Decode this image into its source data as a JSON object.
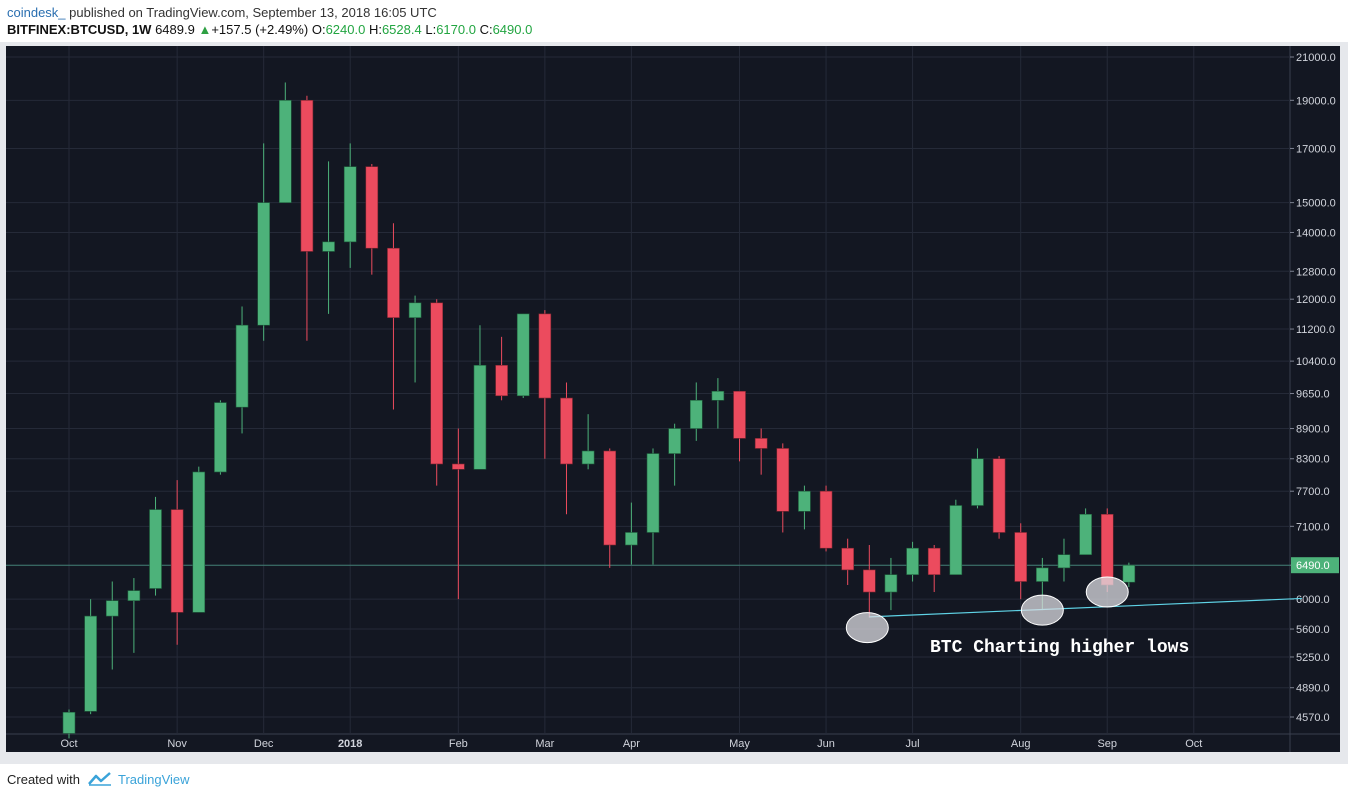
{
  "header": {
    "author": "coindesk_",
    "published": "published on TradingView.com, September 13, 2018 16:05 UTC",
    "symbol": "BITFINEX:BTCUSD, 1W",
    "price": "6489.9",
    "change_arrow": "▲",
    "change": "+157.5 (+2.49%)",
    "o_label": "O:",
    "o_value": "6240.0",
    "h_label": "H:",
    "h_value": "6528.4",
    "l_label": "L:",
    "l_value": "6170.0",
    "c_label": "C:",
    "c_value": "6490.0"
  },
  "footer": {
    "created_with": "Created with",
    "brand": "TradingView"
  },
  "colors": {
    "background": "#131722",
    "up": "#4db27a",
    "down": "#ec4b5e",
    "trendline": "#5fd3e6",
    "grid": "#252a38"
  },
  "chart_data": {
    "type": "candlestick",
    "title": "",
    "scale": "log",
    "ylim": [
      4450,
      21600
    ],
    "y_ticks": [
      4570,
      4890,
      5250,
      5600,
      6000,
      6490,
      7100,
      7700,
      8300,
      8900,
      9650,
      10400,
      11200,
      12000,
      12800,
      14000,
      15000,
      17000,
      19000,
      21000
    ],
    "y_tick_labels": [
      "4570.0",
      "4890.0",
      "5250.0",
      "5600.0",
      "6000.0",
      "6490.0",
      "7100.0",
      "7700.0",
      "8300.0",
      "8900.0",
      "9650.0",
      "10400.0",
      "11200.0",
      "12000.0",
      "12800.0",
      "14000.0",
      "15000.0",
      "17000.0",
      "19000.0",
      "21000.0"
    ],
    "last_price_label": "6490.0",
    "x_labels": [
      "Oct",
      "Nov",
      "Dec",
      "2018",
      "Feb",
      "Mar",
      "Apr",
      "May",
      "Jun",
      "Jul",
      "Aug",
      "Sep",
      "Oct"
    ],
    "x_label_weeks": [
      0,
      5,
      9,
      13,
      18,
      22,
      26,
      31,
      35,
      39,
      44,
      48,
      52
    ],
    "candles": [
      {
        "o": 4400,
        "h": 4650,
        "l": 4350,
        "c": 4620
      },
      {
        "o": 4630,
        "h": 6000,
        "l": 4600,
        "c": 5770
      },
      {
        "o": 5770,
        "h": 6250,
        "l": 5100,
        "c": 5980
      },
      {
        "o": 5980,
        "h": 6300,
        "l": 5300,
        "c": 6120
      },
      {
        "o": 6150,
        "h": 7600,
        "l": 6050,
        "c": 7380
      },
      {
        "o": 7380,
        "h": 7900,
        "l": 5400,
        "c": 5820
      },
      {
        "o": 5820,
        "h": 8150,
        "l": 5820,
        "c": 8050
      },
      {
        "o": 8050,
        "h": 9500,
        "l": 8000,
        "c": 9450
      },
      {
        "o": 9350,
        "h": 11800,
        "l": 8800,
        "c": 11300
      },
      {
        "o": 11300,
        "h": 17200,
        "l": 10900,
        "c": 15000
      },
      {
        "o": 15000,
        "h": 19800,
        "l": 15000,
        "c": 19000
      },
      {
        "o": 19000,
        "h": 19200,
        "l": 10900,
        "c": 13400
      },
      {
        "o": 13400,
        "h": 16500,
        "l": 11600,
        "c": 13700
      },
      {
        "o": 13700,
        "h": 17200,
        "l": 12900,
        "c": 16300
      },
      {
        "o": 16300,
        "h": 16400,
        "l": 12700,
        "c": 13500
      },
      {
        "o": 13500,
        "h": 14300,
        "l": 9300,
        "c": 11500
      },
      {
        "o": 11500,
        "h": 12100,
        "l": 9900,
        "c": 11900
      },
      {
        "o": 11900,
        "h": 12000,
        "l": 7800,
        "c": 8200
      },
      {
        "o": 8200,
        "h": 8900,
        "l": 6000,
        "c": 8100
      },
      {
        "o": 8100,
        "h": 11300,
        "l": 8100,
        "c": 10300
      },
      {
        "o": 10300,
        "h": 11000,
        "l": 9500,
        "c": 9600
      },
      {
        "o": 9600,
        "h": 11600,
        "l": 9550,
        "c": 11600
      },
      {
        "o": 11600,
        "h": 11700,
        "l": 8300,
        "c": 9550
      },
      {
        "o": 9550,
        "h": 9900,
        "l": 7300,
        "c": 8200
      },
      {
        "o": 8200,
        "h": 9200,
        "l": 8100,
        "c": 8450
      },
      {
        "o": 8450,
        "h": 8500,
        "l": 6450,
        "c": 6800
      },
      {
        "o": 6800,
        "h": 7500,
        "l": 6500,
        "c": 7000
      },
      {
        "o": 7000,
        "h": 8500,
        "l": 6500,
        "c": 8400
      },
      {
        "o": 8400,
        "h": 9000,
        "l": 7800,
        "c": 8900
      },
      {
        "o": 8900,
        "h": 9900,
        "l": 8650,
        "c": 9500
      },
      {
        "o": 9500,
        "h": 10000,
        "l": 8900,
        "c": 9700
      },
      {
        "o": 9700,
        "h": 9700,
        "l": 8250,
        "c": 8700
      },
      {
        "o": 8700,
        "h": 8900,
        "l": 8000,
        "c": 8500
      },
      {
        "o": 8500,
        "h": 8600,
        "l": 7000,
        "c": 7350
      },
      {
        "o": 7350,
        "h": 7800,
        "l": 7050,
        "c": 7700
      },
      {
        "o": 7700,
        "h": 7800,
        "l": 6700,
        "c": 6750
      },
      {
        "o": 6750,
        "h": 6900,
        "l": 6200,
        "c": 6420
      },
      {
        "o": 6420,
        "h": 6800,
        "l": 5750,
        "c": 6100
      },
      {
        "o": 6100,
        "h": 6600,
        "l": 5850,
        "c": 6350
      },
      {
        "o": 6350,
        "h": 6850,
        "l": 6250,
        "c": 6750
      },
      {
        "o": 6750,
        "h": 6800,
        "l": 6100,
        "c": 6350
      },
      {
        "o": 6350,
        "h": 7550,
        "l": 6350,
        "c": 7450
      },
      {
        "o": 7450,
        "h": 8500,
        "l": 7400,
        "c": 8300
      },
      {
        "o": 8300,
        "h": 8350,
        "l": 6900,
        "c": 7000
      },
      {
        "o": 7000,
        "h": 7150,
        "l": 6000,
        "c": 6250
      },
      {
        "o": 6250,
        "h": 6600,
        "l": 5850,
        "c": 6450
      },
      {
        "o": 6450,
        "h": 6900,
        "l": 6250,
        "c": 6650
      },
      {
        "o": 6650,
        "h": 7400,
        "l": 6650,
        "c": 7300
      },
      {
        "o": 7300,
        "h": 7400,
        "l": 6100,
        "c": 6200
      },
      {
        "o": 6240,
        "h": 6528.4,
        "l": 6170,
        "c": 6490
      }
    ],
    "trendline": {
      "from": {
        "week": 37,
        "value": 5760
      },
      "to": {
        "week": 57,
        "value": 6010
      }
    },
    "highlighted_lows_weeks": [
      37,
      45,
      48
    ],
    "annotation": "BTC Charting higher lows"
  }
}
